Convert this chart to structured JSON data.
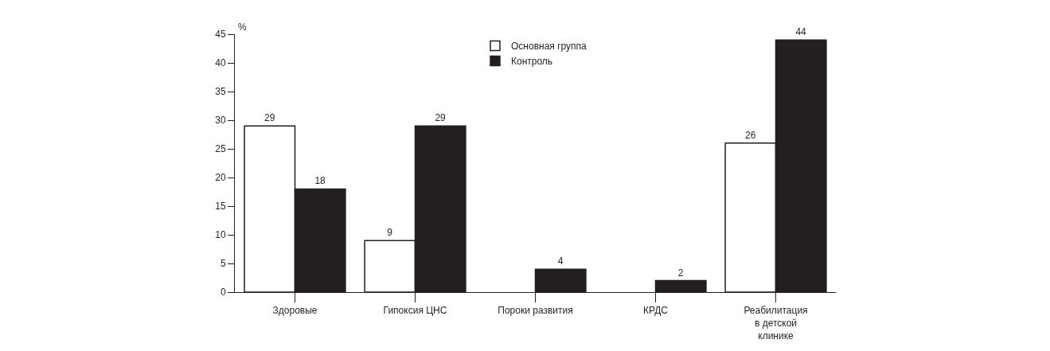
{
  "chart_data": {
    "type": "bar",
    "ylabel": "%",
    "categories": [
      "Здоровые",
      "Гипоксия ЦНС",
      "Пороки развития",
      "КРДС",
      "Реабилитация\nв детской\nклинике"
    ],
    "series": [
      {
        "name": "Основная группа",
        "color": "#ffffff",
        "values": [
          29,
          9,
          null,
          null,
          26
        ]
      },
      {
        "name": "Контроль",
        "color": "#231f20",
        "values": [
          18,
          29,
          4,
          2,
          44
        ]
      }
    ],
    "ylim": [
      0,
      45
    ],
    "yticks": [
      0,
      5,
      10,
      15,
      20,
      25,
      30,
      35,
      40,
      45
    ],
    "data_labels": true,
    "legend": "top"
  }
}
